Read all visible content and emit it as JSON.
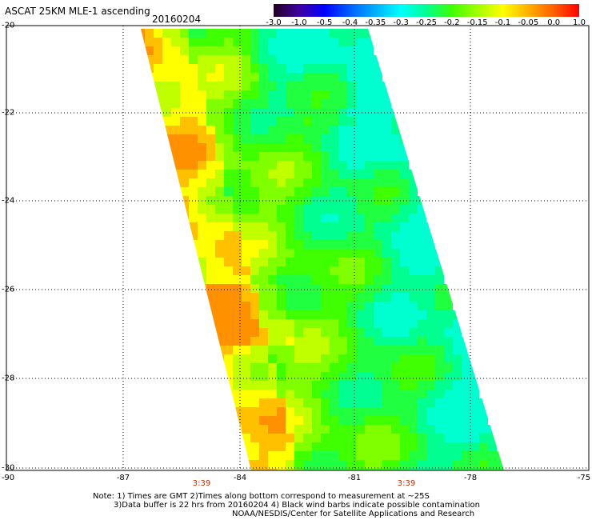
{
  "header": {
    "title": "ASCAT 25KM MLE-1 ascending",
    "date": "20160204"
  },
  "colorbar": {
    "labels": [
      "-3.0",
      "-1.0",
      "-0.5",
      "-0.4",
      "-0.35",
      "-0.3",
      "-0.25",
      "-0.2",
      "-0.15",
      "-0.1",
      "-0.05",
      "0.0",
      "1.0"
    ],
    "colors": [
      "#200020",
      "#4000a0",
      "#0000ff",
      "#0060ff",
      "#00b0ff",
      "#00ffff",
      "#00ff90",
      "#40ff00",
      "#a0ff00",
      "#ffff00",
      "#ffb000",
      "#ff6000",
      "#ff0000"
    ]
  },
  "map": {
    "lat_labels": [
      "-20",
      "-22",
      "-24",
      "-26",
      "-28",
      "-30"
    ],
    "lon_labels": [
      "-90",
      "-87",
      "-84",
      "-81",
      "-78",
      "-75"
    ],
    "time_labels": [
      "3:39",
      "3:39"
    ]
  },
  "notes": [
    "Note: 1) Times are GMT 2)Times along bottom correspond to measurement at ~25S",
    "3)Data buffer is 22 hrs from 20160204 4) Black wind barbs indicate possible contamination",
    "NOAA/NESDIS/Center for Satellite Applications and Research"
  ]
}
